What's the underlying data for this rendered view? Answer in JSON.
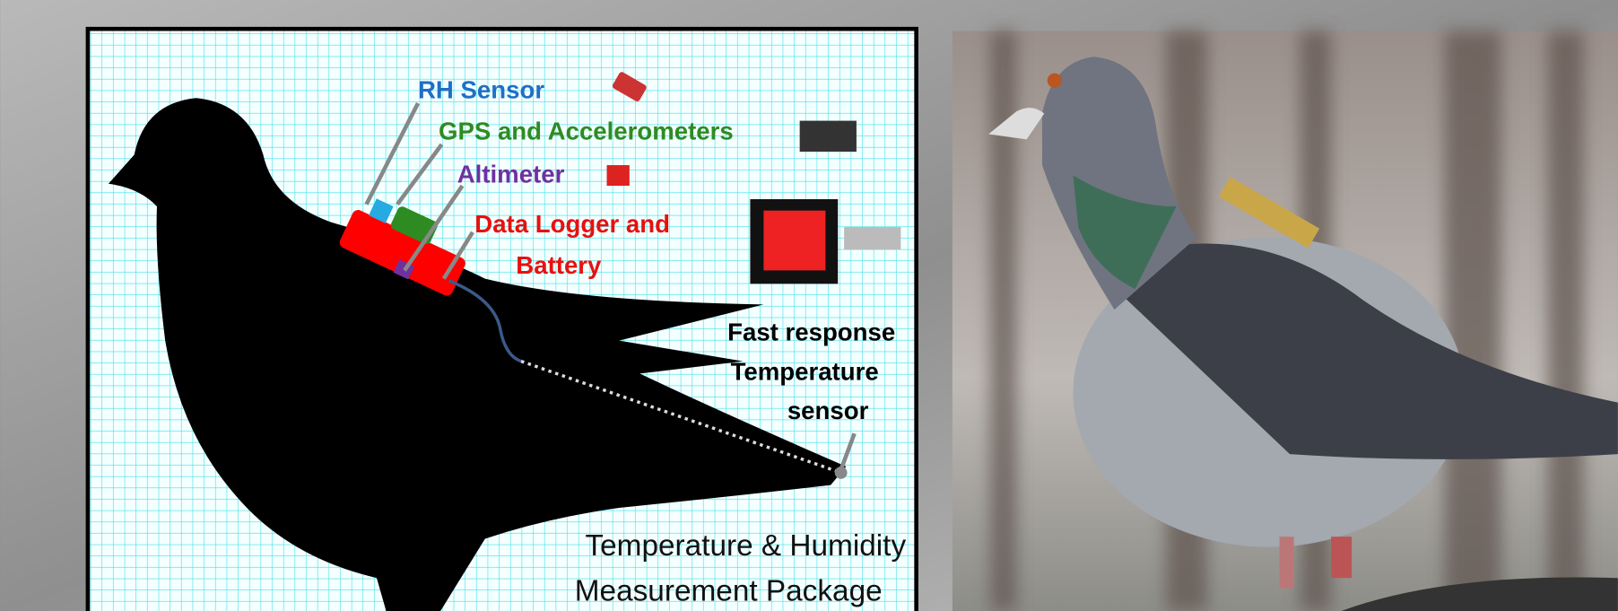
{
  "diagram": {
    "labels": [
      {
        "lines": [
          "RH Sensor"
        ],
        "color": "#1f6fc5"
      },
      {
        "lines": [
          "GPS and Accelerometers"
        ],
        "color": "#2e8b22"
      },
      {
        "lines": [
          "Altimeter"
        ],
        "color": "#7030a0"
      },
      {
        "lines": [
          "Data Logger and",
          "Battery"
        ],
        "color": "#e8100f"
      },
      {
        "lines": [
          "Fast response",
          "Temperature",
          "sensor"
        ],
        "color": "#000000"
      }
    ],
    "caption": [
      "Temperature & Humidity",
      "Measurement Package"
    ]
  }
}
